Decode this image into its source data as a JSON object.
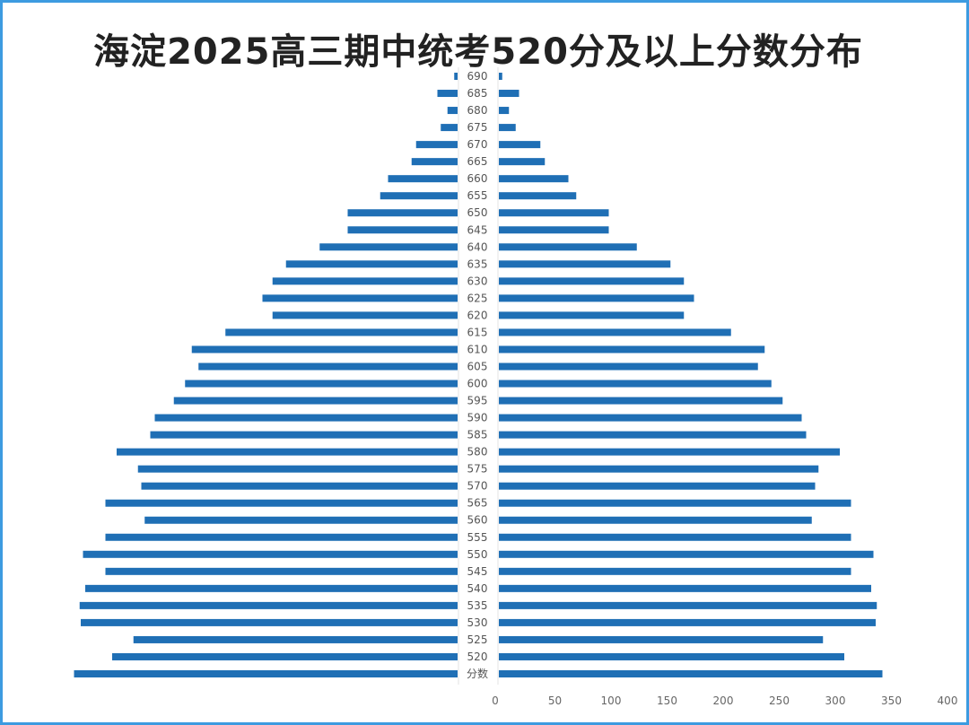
{
  "chart_data": {
    "type": "bar",
    "orientation": "horizontal-butterfly",
    "title": "海淀2025高三期中统考520分及以上分数分布",
    "categories": [
      "690",
      "685",
      "680",
      "675",
      "670",
      "665",
      "660",
      "655",
      "650",
      "645",
      "640",
      "635",
      "630",
      "625",
      "620",
      "615",
      "610",
      "605",
      "600",
      "595",
      "590",
      "585",
      "580",
      "575",
      "570",
      "565",
      "560",
      "555",
      "550",
      "545",
      "540",
      "535",
      "530",
      "525",
      "520",
      "分数"
    ],
    "values": [
      3,
      18,
      9,
      15,
      37,
      41,
      62,
      69,
      98,
      98,
      123,
      153,
      165,
      174,
      165,
      207,
      237,
      231,
      243,
      253,
      270,
      274,
      304,
      285,
      282,
      314,
      279,
      314,
      334,
      314,
      332,
      337,
      336,
      289,
      308,
      342
    ],
    "mirrored": true,
    "xlim": [
      0,
      400
    ],
    "xticks": [
      "0",
      "50",
      "100",
      "150",
      "200",
      "250",
      "300",
      "350",
      "400"
    ],
    "grid": false,
    "bar_color": "#1f6fb5",
    "frame_color": "#3d9be0"
  }
}
